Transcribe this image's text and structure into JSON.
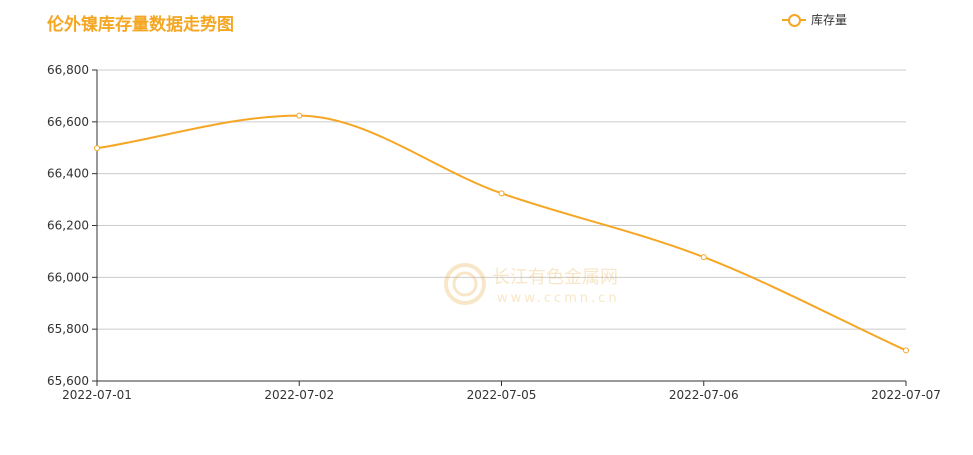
{
  "chart_data": {
    "type": "line",
    "title": "伦外镍库存量数据走势图",
    "categories": [
      "2022-07-01",
      "2022-07-02",
      "2022-07-05",
      "2022-07-06",
      "2022-07-07"
    ],
    "series": [
      {
        "name": "库存量",
        "values": [
          66498,
          66624,
          66324,
          66078,
          65718
        ],
        "color": "#f5a623"
      }
    ],
    "ylim": [
      65600,
      66800
    ],
    "yticks": [
      65600,
      65800,
      66000,
      66200,
      66400,
      66600,
      66800
    ],
    "ytick_labels": [
      "65,600",
      "65,800",
      "66,000",
      "66,200",
      "66,400",
      "66,600",
      "66,800"
    ],
    "grid": true,
    "legend_position": "top-right",
    "smooth": true
  },
  "watermark": {
    "name": "长江有色金属网",
    "url": "www.ccmn.cn"
  },
  "colors": {
    "accent": "#f5a623",
    "grid": "#cccccc",
    "axis": "#333333"
  }
}
